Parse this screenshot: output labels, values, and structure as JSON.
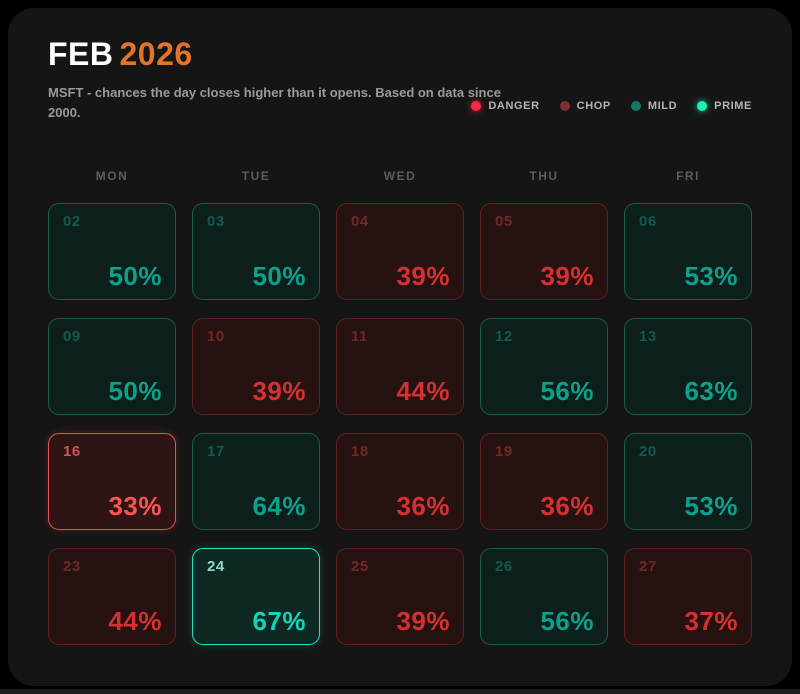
{
  "header": {
    "month": "FEB",
    "year": "2026",
    "subtitle": "MSFT - chances the day closes higher than it opens. Based on data since 2000."
  },
  "legend": {
    "items": [
      {
        "label": "DANGER",
        "kind": "danger",
        "color": "#fa2847"
      },
      {
        "label": "CHOP",
        "kind": "chop",
        "color": "#7e2f2f"
      },
      {
        "label": "MILD",
        "kind": "mild",
        "color": "#137a66"
      },
      {
        "label": "PRIME",
        "kind": "prime",
        "color": "#1cf2b6"
      }
    ]
  },
  "calendar": {
    "day_headers": [
      "MON",
      "TUE",
      "WED",
      "THU",
      "FRI"
    ],
    "cells": [
      {
        "day": "02",
        "pct": "50%",
        "kind": "mild"
      },
      {
        "day": "03",
        "pct": "50%",
        "kind": "mild"
      },
      {
        "day": "04",
        "pct": "39%",
        "kind": "chop"
      },
      {
        "day": "05",
        "pct": "39%",
        "kind": "chop"
      },
      {
        "day": "06",
        "pct": "53%",
        "kind": "mild"
      },
      {
        "day": "09",
        "pct": "50%",
        "kind": "mild"
      },
      {
        "day": "10",
        "pct": "39%",
        "kind": "chop"
      },
      {
        "day": "11",
        "pct": "44%",
        "kind": "chop"
      },
      {
        "day": "12",
        "pct": "56%",
        "kind": "mild"
      },
      {
        "day": "13",
        "pct": "63%",
        "kind": "mild"
      },
      {
        "day": "16",
        "pct": "33%",
        "kind": "danger"
      },
      {
        "day": "17",
        "pct": "64%",
        "kind": "mild"
      },
      {
        "day": "18",
        "pct": "36%",
        "kind": "chop"
      },
      {
        "day": "19",
        "pct": "36%",
        "kind": "chop"
      },
      {
        "day": "20",
        "pct": "53%",
        "kind": "mild"
      },
      {
        "day": "23",
        "pct": "44%",
        "kind": "chop"
      },
      {
        "day": "24",
        "pct": "67%",
        "kind": "prime"
      },
      {
        "day": "25",
        "pct": "39%",
        "kind": "chop"
      },
      {
        "day": "26",
        "pct": "56%",
        "kind": "mild"
      },
      {
        "day": "27",
        "pct": "37%",
        "kind": "chop"
      }
    ]
  },
  "colors": {
    "year_accent": "#e2732a",
    "danger_bright": "#fa2847",
    "chop_muted": "#d63030",
    "mild_teal": "#0ba18d",
    "prime_cyan": "#16d2b8",
    "card_background": "#151515"
  },
  "chart_data": {
    "type": "heatmap",
    "title": "FEB 2026",
    "subtitle": "MSFT - chances the day closes higher than it opens. Based on data since 2000.",
    "columns": [
      "MON",
      "TUE",
      "WED",
      "THU",
      "FRI"
    ],
    "legend": [
      "DANGER",
      "CHOP",
      "MILD",
      "PRIME"
    ],
    "unit": "percent",
    "rows": [
      {
        "days": [
          2,
          3,
          4,
          5,
          6
        ],
        "values": [
          50,
          50,
          39,
          39,
          53
        ],
        "categories": [
          "mild",
          "mild",
          "chop",
          "chop",
          "mild"
        ]
      },
      {
        "days": [
          9,
          10,
          11,
          12,
          13
        ],
        "values": [
          50,
          39,
          44,
          56,
          63
        ],
        "categories": [
          "mild",
          "chop",
          "chop",
          "mild",
          "mild"
        ]
      },
      {
        "days": [
          16,
          17,
          18,
          19,
          20
        ],
        "values": [
          33,
          64,
          36,
          36,
          53
        ],
        "categories": [
          "danger",
          "mild",
          "chop",
          "chop",
          "mild"
        ]
      },
      {
        "days": [
          23,
          24,
          25,
          26,
          27
        ],
        "values": [
          44,
          67,
          39,
          56,
          37
        ],
        "categories": [
          "chop",
          "prime",
          "chop",
          "mild",
          "chop"
        ]
      }
    ],
    "min_day": {
      "day": 16,
      "value": 33,
      "category": "danger"
    },
    "max_day": {
      "day": 24,
      "value": 67,
      "category": "prime"
    }
  }
}
